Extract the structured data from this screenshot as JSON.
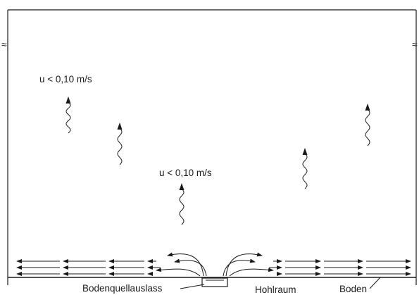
{
  "labels": {
    "velocity_upper": "u < 0,10 m/s",
    "velocity_middle": "u < 0,10 m/s",
    "outlet": "Bodenquellauslass",
    "cavity": "Hohlraum",
    "floor": "Boden"
  },
  "symbols": {
    "break_mark": "≈"
  }
}
